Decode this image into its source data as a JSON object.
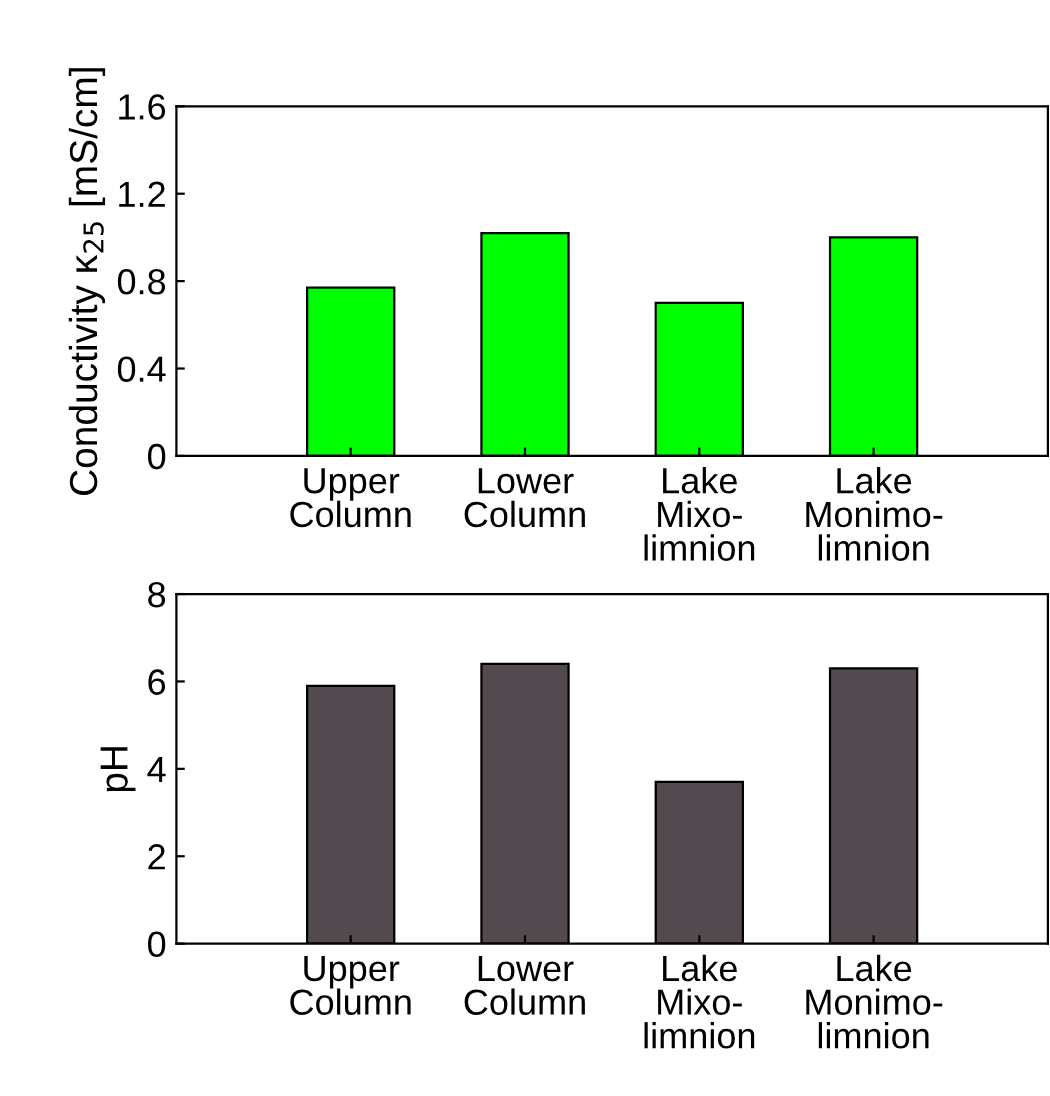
{
  "chart_data": [
    {
      "type": "bar",
      "ylabel": "Conductivity κ$_{25}$ [mS/cm]",
      "categories": [
        "Upper\nColumn",
        "Lower\nColumn",
        "Lake\nMixo-\nlimnion",
        "Lake\nMonimo-\nlimnion"
      ],
      "values": [
        0.77,
        1.02,
        0.7,
        1.0
      ],
      "color": "#00ff00",
      "ylim": [
        0,
        1.6
      ],
      "yticks": [
        0,
        0.4,
        0.8,
        1.2,
        1.6
      ],
      "grid": false
    },
    {
      "type": "bar",
      "ylabel": "pH",
      "categories": [
        "Upper\nColumn",
        "Lower\nColumn",
        "Lake\nMixo-\nlimnion",
        "Lake\nMonimo-\nlimnion"
      ],
      "values": [
        5.9,
        6.4,
        3.7,
        6.3
      ],
      "color": "#524a4e",
      "ylim": [
        0,
        8
      ],
      "yticks": [
        0,
        2,
        4,
        6,
        8
      ],
      "grid": false
    }
  ]
}
